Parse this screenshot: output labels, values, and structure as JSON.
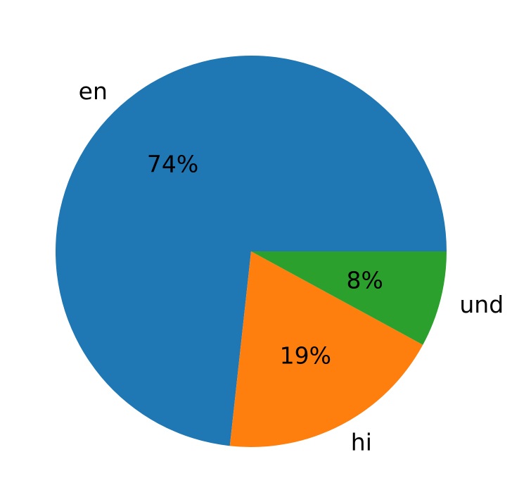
{
  "figure": {
    "title": "",
    "background_color": "#ffffff",
    "text_color": "#000000"
  },
  "chart_data": {
    "type": "pie",
    "title": "",
    "categories": [
      "en",
      "hi",
      "und"
    ],
    "values": [
      74,
      19,
      8
    ],
    "pct_labels": [
      "74%",
      "19%",
      "8%"
    ],
    "colors": [
      "#1f77b4",
      "#ff7f0e",
      "#2ca02c"
    ],
    "start_angle_deg": 0,
    "direction": "counterclockwise",
    "legend": "none",
    "label_distance": 1.1,
    "pct_distance": 0.6
  }
}
